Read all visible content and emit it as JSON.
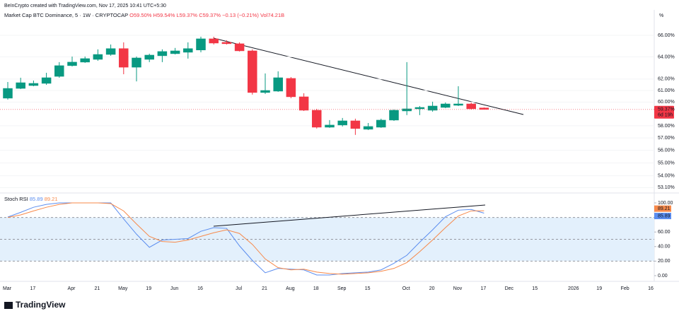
{
  "header": {
    "credit": "BeInCrypto created with TradingView.com, Nov 17, 2025 10:41 UTC+5:30"
  },
  "footer": {
    "brand": "TradingView"
  },
  "chart_data": [
    {
      "type": "candlestick",
      "title": "Market Cap BTC Dominance, 5 · 1W · CRYPTOCAP",
      "ohlc_text": [
        "O59.50%",
        "H59.54%",
        "L59.37%",
        "C59.37%",
        "−0.13 (−0.21%)",
        "Vol74.21B"
      ],
      "axis_unit": "%",
      "last_label": "59.37%",
      "countdown": "6d 19h",
      "up_color": "#089981",
      "down_color": "#f23645",
      "log_scale": true,
      "ylim": [
        52.85,
        68.44
      ],
      "yticks": [
        {
          "value": 66,
          "label": "66.00%"
        },
        {
          "value": 64,
          "label": "64.00%"
        },
        {
          "value": 62,
          "label": "62.00%"
        },
        {
          "value": 61,
          "label": "61.00%"
        },
        {
          "value": 60,
          "label": "60.00%"
        },
        {
          "value": 58,
          "label": "58.00%"
        },
        {
          "value": 57,
          "label": "57.00%"
        },
        {
          "value": 56,
          "label": "56.00%"
        },
        {
          "value": 55,
          "label": "55.00%"
        },
        {
          "value": 54,
          "label": "54.00%"
        },
        {
          "value": 53.1,
          "label": "53.10%"
        }
      ],
      "open": [
        60.33,
        61.18,
        61.43,
        61.62,
        62.24,
        63.2,
        63.52,
        63.77,
        64.22,
        64.76,
        63.06,
        63.77,
        64.1,
        64.29,
        64.42,
        64.63,
        65.67,
        65.34,
        65.21,
        64.55,
        60.82,
        60.94,
        62.06,
        60.45,
        59.3,
        57.88,
        58.06,
        58.41,
        57.71,
        57.88,
        58.47,
        59.24,
        59.42,
        59.3,
        59.54,
        59.72,
        59.84,
        59.5,
        null,
        null,
        null,
        null,
        null,
        null,
        null,
        null,
        null,
        null,
        null,
        null,
        null
      ],
      "high": [
        61.74,
        62.12,
        61.87,
        62.56,
        63.52,
        64.03,
        64.03,
        64.69,
        65.14,
        65.34,
        64.03,
        64.29,
        64.69,
        64.82,
        65.34,
        65.87,
        65.87,
        65.54,
        65.34,
        64.69,
        62.5,
        62.69,
        62.18,
        60.76,
        59.42,
        58.47,
        58.65,
        58.59,
        58.23,
        58.59,
        59.36,
        63.52,
        59.66,
        60.03,
        59.96,
        61.37,
        59.96,
        59.54,
        null,
        null,
        null,
        null,
        null,
        null,
        null,
        null,
        null,
        null,
        null,
        null,
        null
      ],
      "low": [
        60.21,
        61.12,
        61.37,
        61.49,
        62.12,
        63.13,
        63.45,
        63.64,
        64.1,
        62.43,
        61.8,
        63.52,
        63.52,
        64.22,
        63.84,
        64.42,
        65.14,
        65.14,
        64.49,
        60.64,
        60.7,
        60.88,
        60.33,
        59.24,
        57.77,
        57.83,
        57.94,
        57.25,
        57.65,
        57.83,
        58.41,
        58.89,
        58.89,
        59.18,
        59.48,
        59.66,
        59.36,
        59.37,
        null,
        null,
        null,
        null,
        null,
        null,
        null,
        null,
        null,
        null,
        null,
        null,
        null
      ],
      "close": [
        61.18,
        61.68,
        61.62,
        62.12,
        63.2,
        63.52,
        63.84,
        64.22,
        64.76,
        63.06,
        63.9,
        64.16,
        64.49,
        64.55,
        64.76,
        65.67,
        65.27,
        65.21,
        64.55,
        60.82,
        61.0,
        62.12,
        60.45,
        59.3,
        57.88,
        58.06,
        58.41,
        57.77,
        57.94,
        58.47,
        59.3,
        59.42,
        59.54,
        59.66,
        59.84,
        59.84,
        59.42,
        59.37,
        null,
        null,
        null,
        null,
        null,
        null,
        null,
        null,
        null,
        null,
        null,
        null,
        null
      ]
    },
    {
      "type": "line",
      "title": "Stoch RSI",
      "categories": [
        "Mar",
        null,
        "17",
        null,
        null,
        "Apr",
        null,
        "21",
        null,
        "May",
        null,
        "19",
        null,
        "Jun",
        null,
        "16",
        null,
        null,
        "Jul",
        null,
        "21",
        null,
        "Aug",
        null,
        "18",
        null,
        "Sep",
        null,
        "15",
        null,
        null,
        "Oct",
        null,
        "20",
        null,
        "Nov",
        null,
        "17",
        null,
        "Dec",
        null,
        "15",
        null,
        null,
        "2026",
        null,
        "19",
        null,
        "Feb",
        null,
        "16"
      ],
      "ylim": [
        -7.8,
        110.7
      ],
      "yticks": [
        {
          "value": 100,
          "label": "100.00"
        },
        {
          "value": 80,
          "label": "80.00"
        },
        {
          "value": 60,
          "label": "60.00"
        },
        {
          "value": 40,
          "label": "40.00"
        },
        {
          "value": 20,
          "label": "20.00"
        },
        {
          "value": 0,
          "label": "0.00"
        }
      ],
      "levels": [
        80,
        50,
        20
      ],
      "band_color": "#e3f0fc",
      "series": [
        {
          "color": "#5b8def",
          "values": [
            80.6,
            87,
            94,
            98,
            100,
            100,
            100,
            100,
            100,
            78,
            57,
            39,
            49,
            50,
            51,
            61,
            66,
            65,
            41,
            21,
            4,
            10,
            9,
            8,
            1,
            1,
            3,
            4,
            5,
            8,
            17,
            28,
            46,
            63,
            81,
            90,
            91,
            85.89,
            null,
            null,
            null,
            null,
            null,
            null,
            null,
            null,
            null,
            null,
            null,
            null,
            null
          ]
        },
        {
          "color": "#f7894a",
          "values": [
            80,
            83.5,
            89,
            94,
            98,
            100,
            100,
            100,
            99,
            89,
            71,
            54,
            47,
            46,
            49,
            54,
            59,
            63,
            58,
            43,
            23,
            11,
            8,
            9,
            5,
            3,
            2,
            3,
            4,
            6,
            10,
            18,
            33,
            49,
            66,
            82,
            89,
            89.21,
            null,
            null,
            null,
            null,
            null,
            null,
            null,
            null,
            null,
            null,
            null,
            null,
            null
          ]
        }
      ]
    }
  ]
}
